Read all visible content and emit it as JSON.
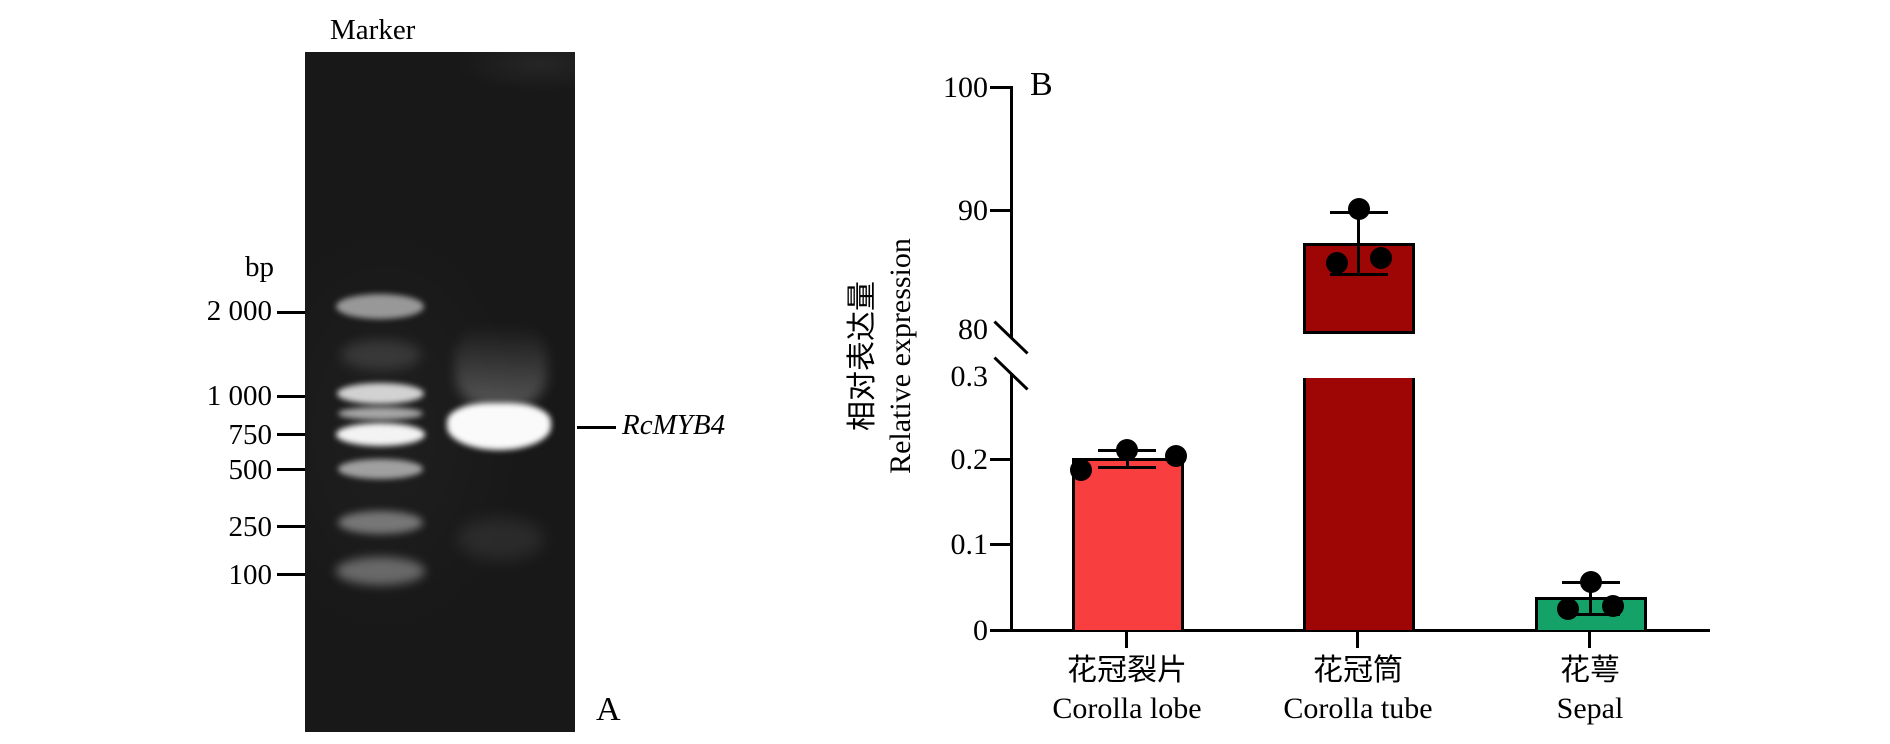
{
  "figure": {
    "panel_a": {
      "panel_letter": "A",
      "marker_lane_label": "Marker",
      "bp_unit_label": "bp",
      "ladder_sizes": [
        "2 000",
        "1 000",
        "750",
        "500",
        "250",
        "100"
      ],
      "band_label": "RcMYB4"
    },
    "panel_b": {
      "panel_letter": "B",
      "y_axis_title_zh": "相对表达量",
      "y_axis_title_en": "Relative expression",
      "y_ticks": [
        "100",
        "90",
        "80",
        "0.3",
        "0.2",
        "0.1",
        "0"
      ]
    }
  },
  "chart_data": {
    "type": "bar",
    "title": "",
    "xlabel": "",
    "ylabel_zh": "相对表达量",
    "ylabel_en": "Relative expression",
    "axis_break": {
      "lower_segment_range": [
        0,
        0.3
      ],
      "upper_segment_range": [
        80,
        100
      ],
      "lower_tick_step": 0.1,
      "upper_tick_step": 10
    },
    "grid": false,
    "legend": "none",
    "categories": [
      {
        "zh": "花冠裂片",
        "en": "Corolla lobe"
      },
      {
        "zh": "花冠筒",
        "en": "Corolla tube"
      },
      {
        "zh": "花萼",
        "en": "Sepal"
      }
    ],
    "series": [
      {
        "name": "Relative expression of RcMYB4",
        "means": [
          0.2,
          87.5,
          0.038
        ],
        "replicate_points": [
          [
            0.19,
            0.212,
            0.205
          ],
          [
            90.0,
            86.0,
            85.5
          ],
          [
            0.058,
            0.027,
            0.03
          ]
        ],
        "error_bar_range": [
          [
            0.19,
            0.21
          ],
          [
            85.0,
            90.0
          ],
          [
            0.018,
            0.057
          ]
        ]
      }
    ],
    "bar_colors": [
      "#F83E3E",
      "#9E0505",
      "#14A268"
    ],
    "bar_outline_color": "#000000",
    "point_marker": "filled-black-circle"
  }
}
